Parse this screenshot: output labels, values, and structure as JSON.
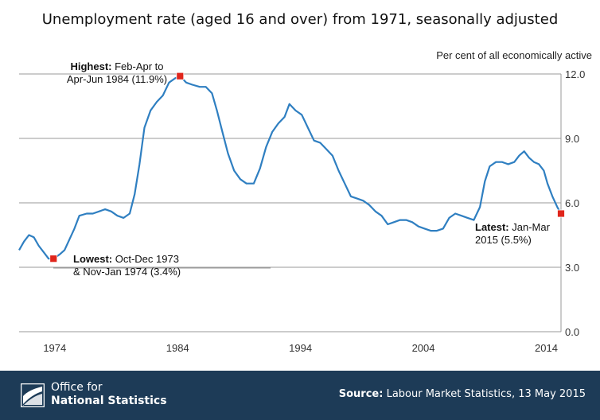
{
  "title": "Unemployment rate (aged 16 and over) from 1971, seasonally adjusted",
  "footer": {
    "org_line1": "Office for",
    "org_line2": "National Statistics",
    "source_label": "Source:",
    "source_text": "Labour Market Statistics, 13 May 2015",
    "background": "#1d3b57"
  },
  "chart_data": {
    "type": "line",
    "title": "Unemployment rate (aged 16 and over) from 1971, seasonally adjusted",
    "ylabel": "Per cent of all economically active",
    "xlabel": "",
    "xlim": [
      1971.1,
      2015.2
    ],
    "ylim": [
      0,
      12
    ],
    "y_ticks": [
      "0.0",
      "3.0",
      "6.0",
      "9.0",
      "12.0"
    ],
    "x_ticks": [
      "1974",
      "1984",
      "1994",
      "2004",
      "2014"
    ],
    "grid": true,
    "line_color": "#2f7fc1",
    "marker_color": "#e0251b",
    "series": [
      {
        "values": [
          [
            1971.1,
            3.8
          ],
          [
            1971.5,
            4.2
          ],
          [
            1971.9,
            4.5
          ],
          [
            1972.3,
            4.4
          ],
          [
            1972.7,
            4.0
          ],
          [
            1973.1,
            3.7
          ],
          [
            1973.5,
            3.4
          ],
          [
            1973.9,
            3.4
          ],
          [
            1974.4,
            3.6
          ],
          [
            1974.8,
            3.8
          ],
          [
            1975.2,
            4.3
          ],
          [
            1975.6,
            4.8
          ],
          [
            1976.0,
            5.4
          ],
          [
            1976.6,
            5.5
          ],
          [
            1977.1,
            5.5
          ],
          [
            1977.6,
            5.6
          ],
          [
            1978.1,
            5.7
          ],
          [
            1978.6,
            5.6
          ],
          [
            1979.1,
            5.4
          ],
          [
            1979.6,
            5.3
          ],
          [
            1980.1,
            5.5
          ],
          [
            1980.5,
            6.4
          ],
          [
            1980.9,
            7.8
          ],
          [
            1981.3,
            9.5
          ],
          [
            1981.8,
            10.3
          ],
          [
            1982.3,
            10.7
          ],
          [
            1982.8,
            11.0
          ],
          [
            1983.3,
            11.6
          ],
          [
            1983.8,
            11.8
          ],
          [
            1984.2,
            11.9
          ],
          [
            1984.7,
            11.6
          ],
          [
            1985.2,
            11.5
          ],
          [
            1985.8,
            11.4
          ],
          [
            1986.3,
            11.4
          ],
          [
            1986.8,
            11.1
          ],
          [
            1987.2,
            10.3
          ],
          [
            1987.6,
            9.4
          ],
          [
            1988.1,
            8.3
          ],
          [
            1988.6,
            7.5
          ],
          [
            1989.1,
            7.1
          ],
          [
            1989.6,
            6.9
          ],
          [
            1990.2,
            6.9
          ],
          [
            1990.7,
            7.6
          ],
          [
            1991.2,
            8.6
          ],
          [
            1991.7,
            9.3
          ],
          [
            1992.2,
            9.7
          ],
          [
            1992.7,
            10.0
          ],
          [
            1993.1,
            10.6
          ],
          [
            1993.6,
            10.3
          ],
          [
            1994.1,
            10.1
          ],
          [
            1994.6,
            9.5
          ],
          [
            1995.1,
            8.9
          ],
          [
            1995.6,
            8.8
          ],
          [
            1996.1,
            8.5
          ],
          [
            1996.6,
            8.2
          ],
          [
            1997.1,
            7.5
          ],
          [
            1997.6,
            6.9
          ],
          [
            1998.1,
            6.3
          ],
          [
            1998.6,
            6.2
          ],
          [
            1999.1,
            6.1
          ],
          [
            1999.6,
            5.9
          ],
          [
            2000.1,
            5.6
          ],
          [
            2000.6,
            5.4
          ],
          [
            2001.1,
            5.0
          ],
          [
            2001.6,
            5.1
          ],
          [
            2002.1,
            5.2
          ],
          [
            2002.6,
            5.2
          ],
          [
            2003.1,
            5.1
          ],
          [
            2003.6,
            4.9
          ],
          [
            2004.1,
            4.8
          ],
          [
            2004.6,
            4.7
          ],
          [
            2005.1,
            4.7
          ],
          [
            2005.6,
            4.8
          ],
          [
            2006.1,
            5.3
          ],
          [
            2006.6,
            5.5
          ],
          [
            2007.1,
            5.4
          ],
          [
            2007.6,
            5.3
          ],
          [
            2008.1,
            5.2
          ],
          [
            2008.6,
            5.8
          ],
          [
            2009.0,
            7.0
          ],
          [
            2009.4,
            7.7
          ],
          [
            2009.9,
            7.9
          ],
          [
            2010.4,
            7.9
          ],
          [
            2010.9,
            7.8
          ],
          [
            2011.4,
            7.9
          ],
          [
            2011.8,
            8.2
          ],
          [
            2012.2,
            8.4
          ],
          [
            2012.6,
            8.1
          ],
          [
            2013.0,
            7.9
          ],
          [
            2013.4,
            7.8
          ],
          [
            2013.8,
            7.5
          ],
          [
            2014.1,
            6.9
          ],
          [
            2014.5,
            6.3
          ],
          [
            2014.9,
            5.8
          ],
          [
            2015.2,
            5.5
          ]
        ]
      }
    ],
    "markers": [
      {
        "name": "highest",
        "x": 1984.2,
        "y": 11.9
      },
      {
        "name": "lowest",
        "x": 1973.9,
        "y": 3.4
      },
      {
        "name": "latest",
        "x": 2015.2,
        "y": 5.5
      }
    ],
    "annotations": {
      "highest": {
        "bold": "Highest:",
        "line1": " Feb-Apr to",
        "line2": "Apr-Jun 1984 (11.9%)"
      },
      "lowest": {
        "bold": "Lowest:",
        "line1": " Oct-Dec 1973",
        "line2": "& Nov-Jan 1974 (3.4%)"
      },
      "latest": {
        "bold": "Latest:",
        "line1": " Jan-Mar",
        "line2": "2015 (5.5%)"
      }
    }
  }
}
